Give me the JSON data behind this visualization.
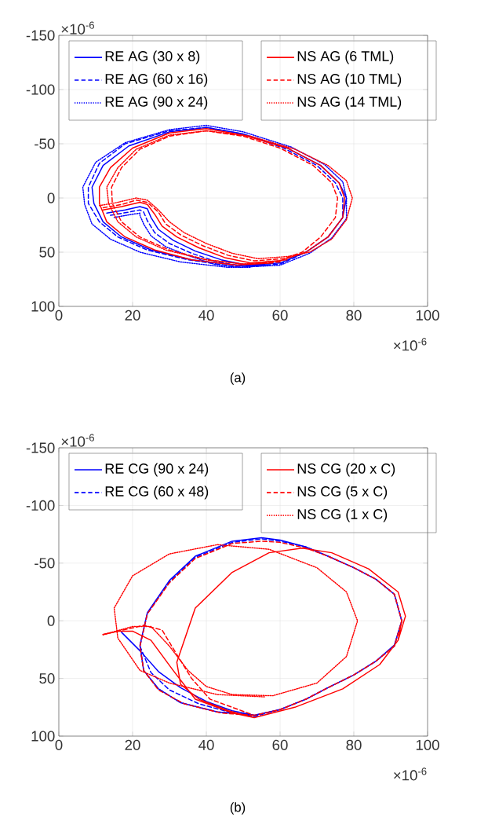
{
  "chart_data": [
    {
      "type": "line",
      "title": "(a)",
      "xlim": [
        0,
        100
      ],
      "ylim": [
        100,
        -150
      ],
      "xticks": [
        0,
        20,
        40,
        60,
        80,
        100
      ],
      "yticks": [
        -150,
        -100,
        -50,
        0,
        50,
        100
      ],
      "grid": true,
      "legend": "top",
      "annotations": [
        "×10$^{-6}$",
        "×10$^{-6}$"
      ],
      "series": [
        {
          "name": "RE AG (30 x 8)",
          "color": "#0000ff",
          "line_style": "solid",
          "x": [
            13,
            18,
            22,
            24,
            25,
            27,
            31,
            37,
            44,
            51,
            60,
            67,
            73,
            77,
            78,
            76,
            71,
            62,
            50,
            40,
            30,
            19,
            12,
            9,
            9.5,
            12,
            17,
            25,
            36,
            48,
            56
          ],
          "values": [
            14,
            11,
            8,
            10,
            18,
            29,
            39,
            49,
            57,
            62,
            60,
            50,
            36,
            18,
            0,
            -14,
            -30,
            -46,
            -59,
            -65,
            -61,
            -48,
            -30,
            -10,
            5,
            22,
            36,
            48,
            57,
            62,
            62
          ]
        },
        {
          "name": "RE AG (60 x 16)",
          "color": "#0000ff",
          "line_style": "dashed",
          "x": [
            14,
            19,
            22,
            23,
            24,
            26,
            30,
            36,
            43,
            50,
            60,
            67,
            73,
            77,
            77,
            75,
            70,
            61,
            50,
            40,
            30,
            18,
            11,
            8,
            8,
            11,
            16,
            24,
            35,
            47,
            54
          ],
          "values": [
            16,
            13,
            11,
            13,
            21,
            32,
            42,
            51,
            59,
            63,
            61,
            50,
            36,
            18,
            0,
            -14,
            -30,
            -46,
            -59,
            -65,
            -62,
            -50,
            -32,
            -10,
            5,
            22,
            36,
            48,
            57,
            63,
            63
          ]
        },
        {
          "name": "RE AG (90 x 24)",
          "color": "#0000ff",
          "line_style": "dotted",
          "x": [
            15,
            20,
            22,
            22,
            23,
            25,
            29,
            35,
            42,
            49,
            60,
            68,
            74,
            78,
            78,
            77,
            72,
            63,
            50,
            40,
            30,
            18,
            10,
            6.5,
            7,
            9,
            14,
            22,
            33,
            46,
            52
          ],
          "values": [
            18,
            15,
            14,
            16,
            24,
            35,
            45,
            53,
            61,
            64,
            62,
            51,
            37,
            19,
            0,
            -15,
            -31,
            -47,
            -61,
            -67,
            -63,
            -51,
            -33,
            -10,
            6,
            24,
            38,
            50,
            59,
            64,
            64
          ]
        },
        {
          "name": "NS AG (6 TML)",
          "color": "#ff0000",
          "line_style": "solid",
          "x": [
            12,
            17,
            22,
            24,
            26,
            28,
            32,
            38,
            45,
            52,
            60,
            67,
            73,
            77,
            77.5,
            76,
            71,
            62,
            50,
            40,
            30,
            20,
            14,
            11,
            11,
            13,
            18,
            26,
            36,
            48,
            58
          ],
          "values": [
            11,
            8,
            4,
            6,
            15,
            26,
            36,
            46,
            55,
            60,
            58,
            50,
            36,
            18,
            0,
            -14,
            -30,
            -46,
            -58,
            -64,
            -60,
            -46,
            -28,
            -10,
            5,
            22,
            36,
            48,
            57,
            62,
            60
          ]
        },
        {
          "name": "NS AG (10 TML)",
          "color": "#ff0000",
          "line_style": "dashed",
          "x": [
            12,
            17,
            21,
            24,
            27,
            29,
            33,
            39,
            46,
            53,
            61,
            66,
            71,
            75,
            75.6,
            74,
            69,
            60,
            50,
            40,
            30,
            22,
            17,
            14.3,
            14.5,
            17,
            22,
            30,
            40,
            50,
            60
          ],
          "values": [
            9,
            6,
            2,
            4,
            13,
            24,
            34,
            44,
            53,
            58,
            56,
            50,
            36,
            18,
            0,
            -14,
            -30,
            -46,
            -57,
            -62,
            -57,
            -45,
            -28,
            -10,
            5,
            22,
            36,
            48,
            57,
            61,
            59
          ]
        },
        {
          "name": "NS AG (14 TML)",
          "color": "#ff0000",
          "line_style": "dotted",
          "x": [
            11,
            16,
            21,
            24,
            27,
            30,
            34,
            40,
            47,
            54,
            62,
            68,
            74,
            78,
            79.6,
            78,
            73,
            64,
            52,
            40,
            30,
            21,
            16,
            13,
            13.5,
            16,
            21,
            29,
            40,
            50,
            62
          ],
          "values": [
            7,
            4,
            0,
            2,
            11,
            22,
            32,
            42,
            51,
            56,
            54,
            50,
            38,
            20,
            0,
            -16,
            -30,
            -45,
            -57,
            -62,
            -58,
            -45,
            -28,
            -10,
            5,
            22,
            36,
            48,
            57,
            61,
            57
          ]
        }
      ]
    },
    {
      "type": "line",
      "title": "(b)",
      "xlim": [
        0,
        100
      ],
      "ylim": [
        100,
        -150
      ],
      "xticks": [
        0,
        20,
        40,
        60,
        80,
        100
      ],
      "yticks": [
        -150,
        -100,
        -50,
        0,
        50,
        100
      ],
      "grid": true,
      "legend": "top",
      "annotations": [
        "×10$^{-6}$",
        "×10$^{-6}$"
      ],
      "series": [
        {
          "name": "RE CG (90 x 24)",
          "color": "#0000ff",
          "line_style": "solid",
          "x": [
            17,
            22,
            27,
            33,
            40,
            47,
            53,
            60,
            67,
            73,
            80,
            86,
            91,
            93,
            91,
            86,
            80,
            73,
            67,
            60,
            55,
            47,
            37,
            30,
            24,
            22,
            23,
            27,
            33,
            43,
            53,
            60
          ],
          "values": [
            10,
            26,
            44,
            58,
            70,
            78,
            82,
            77,
            68,
            58,
            47,
            35,
            21,
            0,
            -23,
            -36,
            -46,
            -56,
            -64,
            -70,
            -72,
            -69,
            -56,
            -35,
            -7,
            21,
            43,
            59,
            71,
            79,
            82,
            77
          ]
        },
        {
          "name": "RE CG (60 x 48)",
          "color": "#0000ff",
          "line_style": "dashed",
          "x": [
            22,
            25,
            30,
            38,
            46,
            53,
            60,
            67,
            73,
            80,
            86,
            91,
            93,
            91,
            86,
            80,
            73,
            67,
            60,
            55,
            47,
            37,
            30,
            24,
            22,
            23,
            27,
            33,
            43,
            53,
            60
          ],
          "values": [
            22,
            45,
            60,
            72,
            79,
            83,
            77,
            68,
            58,
            47,
            35,
            22,
            0,
            -23,
            -36,
            -46,
            -56,
            -64,
            -69,
            -71,
            -68,
            -55,
            -34,
            -6,
            22,
            43,
            59,
            71,
            79,
            82,
            77
          ]
        },
        {
          "name": "NS CG (20 x C)",
          "color": "#ff0000",
          "line_style": "solid",
          "x": [
            12,
            16,
            20,
            25,
            31,
            37,
            47,
            53,
            64,
            77,
            87,
            92,
            94,
            92,
            84,
            74,
            66,
            57,
            47,
            37,
            32,
            33,
            38,
            46,
            53,
            64,
            77,
            87,
            92,
            93
          ],
          "values": [
            12,
            9,
            9,
            17,
            43,
            68,
            80,
            84,
            75,
            59,
            38,
            17,
            -4,
            -25,
            -45,
            -59,
            -63,
            -59,
            -42,
            -11,
            36,
            55,
            68,
            78,
            84,
            75,
            59,
            38,
            17,
            0
          ]
        },
        {
          "name": "NS CG (5 x C)",
          "color": "#ff0000",
          "line_style": "dashed",
          "x": [
            12,
            16,
            23,
            28,
            31,
            36,
            41,
            53,
            60,
            67,
            73,
            80,
            86,
            91,
            93,
            91,
            86,
            80,
            73,
            67,
            60,
            55,
            47,
            37,
            30,
            24,
            22,
            23,
            27,
            34,
            44,
            53
          ],
          "values": [
            12,
            9,
            4,
            8,
            24,
            50,
            68,
            82,
            77,
            68,
            58,
            47,
            35,
            22,
            0,
            -23,
            -36,
            -46,
            -56,
            -63,
            -68,
            -69,
            -67,
            -54,
            -33,
            -6,
            22,
            43,
            60,
            72,
            80,
            82
          ]
        },
        {
          "name": "NS CG (1 x C)",
          "color": "#ff0000",
          "line_style": "dotted",
          "x": [
            12,
            20,
            25,
            30,
            35,
            40,
            47,
            58,
            70,
            78,
            81,
            78,
            70,
            57,
            43,
            30,
            20,
            15,
            16,
            22,
            30,
            43,
            56
          ],
          "values": [
            12,
            5,
            5,
            22,
            43,
            57,
            64,
            65,
            54,
            31,
            0,
            -25,
            -46,
            -62,
            -66,
            -58,
            -39,
            -11,
            15,
            43,
            54,
            64,
            66
          ]
        }
      ]
    }
  ]
}
